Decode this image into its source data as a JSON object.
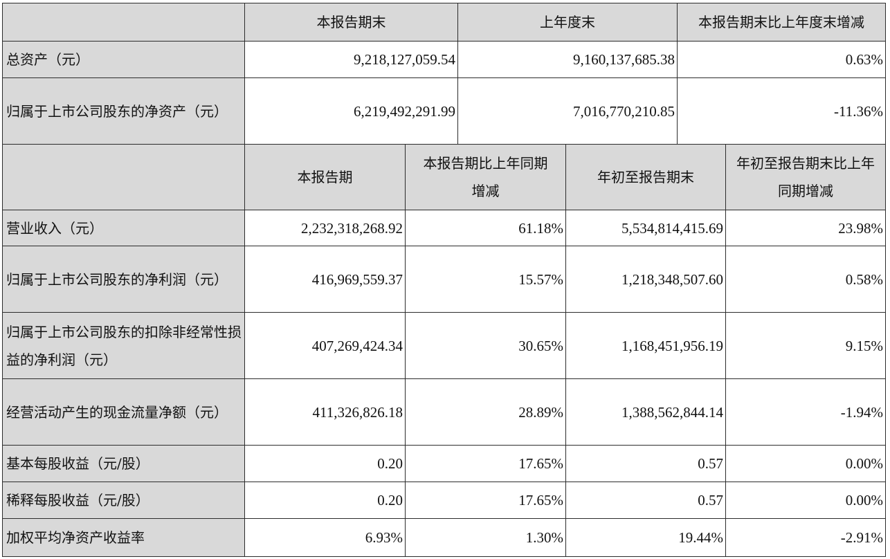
{
  "table": {
    "top_headers": [
      "本报告期末",
      "上年度末",
      "本报告期末比上年度末增减"
    ],
    "top_rows": [
      {
        "label": "总资产（元）",
        "values": [
          "9,218,127,059.54",
          "9,160,137,685.38",
          "0.63%"
        ]
      },
      {
        "label": "归属于上市公司股东的净资产（元）",
        "values": [
          "6,219,492,291.99",
          "7,016,770,210.85",
          "-11.36%"
        ]
      }
    ],
    "bottom_headers": [
      "本报告期",
      "本报告期比上年同期增减",
      "年初至报告期末",
      "年初至报告期末比上年同期增减"
    ],
    "bottom_rows": [
      {
        "label": "营业收入（元）",
        "values": [
          "2,232,318,268.92",
          "61.18%",
          "5,534,814,415.69",
          "23.98%"
        ]
      },
      {
        "label": "归属于上市公司股东的净利润（元）",
        "values": [
          "416,969,559.37",
          "15.57%",
          "1,218,348,507.60",
          "0.58%"
        ]
      },
      {
        "label": "归属于上市公司股东的扣除非经常性损益的净利润（元）",
        "values": [
          "407,269,424.34",
          "30.65%",
          "1,168,451,956.19",
          "9.15%"
        ]
      },
      {
        "label": "经营活动产生的现金流量净额（元）",
        "values": [
          "411,326,826.18",
          "28.89%",
          "1,388,562,844.14",
          "-1.94%"
        ]
      },
      {
        "label": "基本每股收益（元/股）",
        "values": [
          "0.20",
          "17.65%",
          "0.57",
          "0.00%"
        ]
      },
      {
        "label": "稀释每股收益（元/股）",
        "values": [
          "0.20",
          "17.65%",
          "0.57",
          "0.00%"
        ]
      },
      {
        "label": "加权平均净资产收益率",
        "values": [
          "6.93%",
          "1.30%",
          "19.44%",
          "-2.91%"
        ]
      }
    ]
  },
  "colors": {
    "header_fill": "#d9d9d9",
    "border": "#2b2b2b",
    "text": "#111111"
  }
}
